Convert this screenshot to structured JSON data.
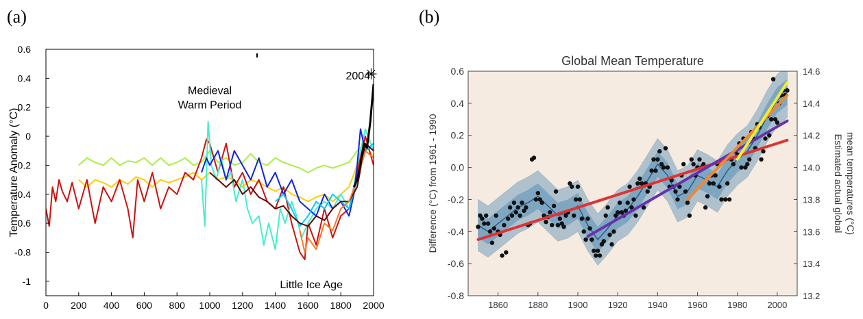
{
  "panels": {
    "a": "(a)",
    "b": "(b)"
  },
  "chart_data": [
    {
      "type": "line",
      "title": "",
      "xlabel": "",
      "ylabel": "Temperature Anomaly (°C)",
      "xlim": [
        0,
        2000
      ],
      "ylim": [
        -1.1,
        0.6
      ],
      "xticks": [
        0,
        200,
        400,
        600,
        800,
        1000,
        1200,
        1400,
        1600,
        1800,
        2000
      ],
      "yticks": [
        -1,
        -0.8,
        -0.6,
        -0.4,
        -0.2,
        0,
        0.2,
        0.4,
        0.6
      ],
      "ytick_labels": [
        "-1",
        "-0.8",
        "-0.6",
        "-0.4",
        "-0.2",
        "0",
        "0.2",
        "0.4",
        "0.6"
      ],
      "grid": false,
      "annotations": [
        {
          "text": "Medieval",
          "x": 1000,
          "y": 0.32
        },
        {
          "text": "Warm Period",
          "x": 1000,
          "y": 0.22
        },
        {
          "text": "Little Ice Age",
          "x": 1620,
          "y": -1.02
        },
        {
          "text": "2004",
          "x": 1905,
          "y": 0.42
        },
        {
          "text": "✳",
          "x": 1985,
          "y": 0.42
        }
      ],
      "series": [
        {
          "color": "#aaee44",
          "x": [
            200,
            250,
            300,
            350,
            400,
            450,
            500,
            550,
            600,
            650,
            700,
            750,
            800,
            850,
            900,
            950,
            1000,
            1050,
            1100,
            1150,
            1200,
            1250,
            1300,
            1350,
            1400,
            1450,
            1500,
            1550,
            1600,
            1650,
            1700,
            1750,
            1800,
            1850,
            1900,
            1950,
            2000
          ],
          "y": [
            -0.2,
            -0.15,
            -0.18,
            -0.2,
            -0.15,
            -0.2,
            -0.17,
            -0.18,
            -0.15,
            -0.2,
            -0.15,
            -0.2,
            -0.18,
            -0.15,
            -0.2,
            -0.18,
            -0.1,
            -0.18,
            -0.15,
            -0.2,
            -0.18,
            -0.12,
            -0.18,
            -0.2,
            -0.15,
            -0.18,
            -0.2,
            -0.22,
            -0.25,
            -0.22,
            -0.2,
            -0.22,
            -0.2,
            -0.18,
            -0.1,
            -0.05,
            -0.15
          ]
        },
        {
          "color": "#ffcc00",
          "x": [
            200,
            250,
            300,
            350,
            400,
            450,
            500,
            550,
            600,
            650,
            700,
            750,
            800,
            850,
            900,
            950,
            1000,
            1050,
            1100,
            1150,
            1200,
            1250,
            1300,
            1350,
            1400,
            1450,
            1500,
            1550,
            1600,
            1650,
            1700,
            1750,
            1800,
            1850,
            1900,
            1950,
            2000
          ],
          "y": [
            -0.3,
            -0.35,
            -0.3,
            -0.32,
            -0.35,
            -0.3,
            -0.33,
            -0.28,
            -0.3,
            -0.35,
            -0.3,
            -0.32,
            -0.3,
            -0.28,
            -0.25,
            -0.3,
            -0.25,
            -0.3,
            -0.28,
            -0.3,
            -0.35,
            -0.3,
            -0.32,
            -0.35,
            -0.38,
            -0.35,
            -0.4,
            -0.42,
            -0.45,
            -0.42,
            -0.4,
            -0.45,
            -0.4,
            -0.35,
            -0.2,
            -0.05,
            -0.15
          ]
        },
        {
          "color": "#cc1111",
          "x": [
            0,
            20,
            40,
            60,
            80,
            100,
            130,
            160,
            200,
            250,
            300,
            350,
            400,
            450,
            500,
            530,
            560,
            600,
            650,
            700,
            750,
            800,
            850,
            900,
            950,
            980,
            1000,
            1050,
            1100,
            1150,
            1200,
            1250,
            1300,
            1350,
            1400,
            1450,
            1500,
            1550,
            1580,
            1600,
            1650,
            1700,
            1750,
            1800,
            1850,
            1880,
            1900,
            1950,
            2000
          ],
          "y": [
            -0.5,
            -0.62,
            -0.35,
            -0.45,
            -0.3,
            -0.38,
            -0.45,
            -0.32,
            -0.5,
            -0.3,
            -0.6,
            -0.35,
            -0.45,
            -0.3,
            -0.5,
            -0.7,
            -0.3,
            -0.45,
            -0.25,
            -0.5,
            -0.35,
            -0.4,
            -0.25,
            -0.3,
            -0.15,
            -0.02,
            -0.05,
            -0.25,
            -0.05,
            -0.35,
            -0.25,
            -0.4,
            -0.3,
            -0.45,
            -0.5,
            -0.35,
            -0.6,
            -0.8,
            -0.85,
            -0.6,
            -0.75,
            -0.5,
            -0.7,
            -0.55,
            -0.5,
            -0.35,
            -0.25,
            0.0,
            -0.2
          ]
        },
        {
          "color": "#44eecc",
          "x": [
            950,
            970,
            990,
            1010,
            1040,
            1070,
            1100,
            1130,
            1160,
            1200,
            1230,
            1260,
            1300,
            1330,
            1360,
            1400,
            1430,
            1460,
            1500,
            1530,
            1560,
            1600,
            1650,
            1700,
            1750,
            1800,
            1850,
            1880,
            1900,
            1950,
            2000
          ],
          "y": [
            -0.3,
            -0.62,
            0.1,
            -0.2,
            -0.3,
            -0.15,
            -0.3,
            -0.25,
            -0.45,
            -0.3,
            -0.5,
            -0.6,
            -0.55,
            -0.75,
            -0.6,
            -0.78,
            -0.5,
            -0.6,
            -0.45,
            -0.55,
            -0.7,
            -0.6,
            -0.5,
            -0.45,
            -0.5,
            -0.4,
            -0.5,
            -0.35,
            -0.2,
            0.05,
            -0.1
          ]
        },
        {
          "color": "#1122dd",
          "x": [
            950,
            980,
            1000,
            1050,
            1100,
            1150,
            1200,
            1250,
            1300,
            1350,
            1400,
            1450,
            1500,
            1550,
            1600,
            1650,
            1700,
            1750,
            1800,
            1850,
            1880,
            1900,
            1920,
            1950,
            2000
          ],
          "y": [
            -0.25,
            -0.15,
            -0.2,
            -0.1,
            -0.3,
            -0.1,
            -0.2,
            -0.3,
            -0.15,
            -0.35,
            -0.25,
            -0.4,
            -0.3,
            -0.45,
            -0.5,
            -0.55,
            -0.4,
            -0.5,
            -0.45,
            -0.55,
            -0.4,
            -0.2,
            0.05,
            -0.1,
            -0.05
          ]
        },
        {
          "color": "#00ccff",
          "x": [
            1400,
            1450,
            1500,
            1550,
            1600,
            1650,
            1700,
            1750,
            1800,
            1850,
            1900,
            1950,
            2000
          ],
          "y": [
            -0.45,
            -0.4,
            -0.5,
            -0.62,
            -0.55,
            -0.45,
            -0.5,
            -0.4,
            -0.45,
            -0.5,
            -0.3,
            -0.1,
            -0.05
          ]
        },
        {
          "color": "#660000",
          "x": [
            1000,
            1050,
            1100,
            1150,
            1200,
            1250,
            1300,
            1350,
            1400,
            1450,
            1500,
            1550,
            1600,
            1650,
            1700,
            1750,
            1800,
            1850,
            1900,
            1950,
            2000
          ],
          "y": [
            -0.25,
            -0.3,
            -0.35,
            -0.3,
            -0.4,
            -0.35,
            -0.42,
            -0.45,
            -0.5,
            -0.48,
            -0.55,
            -0.6,
            -0.62,
            -0.55,
            -0.58,
            -0.5,
            -0.45,
            -0.45,
            -0.35,
            -0.05,
            -0.1
          ]
        },
        {
          "color": "#ff7722",
          "x": [
            1550,
            1580,
            1600,
            1650,
            1700,
            1750,
            1800,
            1850,
            1900,
            1950,
            2000
          ],
          "y": [
            -0.65,
            -0.8,
            -0.7,
            -0.78,
            -0.6,
            -0.65,
            -0.5,
            -0.45,
            -0.3,
            -0.1,
            -0.15
          ]
        },
        {
          "color": "#000000",
          "x": [
            1880,
            1900,
            1920,
            1940,
            1960,
            1980,
            2000
          ],
          "y": [
            -0.35,
            -0.3,
            -0.2,
            -0.05,
            -0.08,
            0.1,
            0.36
          ]
        }
      ]
    },
    {
      "type": "scatter",
      "title": "Global Mean Temperature",
      "xlabel": "",
      "ylabel": "Difference (°C) from 1961 - 1990",
      "y2label_lines": [
        "Estimated actual global",
        "mean temperatures (°C)"
      ],
      "xlim": [
        1845,
        2010
      ],
      "ylim": [
        -0.8,
        0.6
      ],
      "y2lim": [
        13.2,
        14.6
      ],
      "xticks": [
        1860,
        1880,
        1900,
        1920,
        1940,
        1960,
        1980,
        2000
      ],
      "yticks": [
        -0.8,
        -0.6,
        -0.4,
        -0.2,
        0.0,
        0.2,
        0.4,
        0.6
      ],
      "ytick_labels": [
        "-0.8",
        "-0.6",
        "-0.4",
        "-0.2",
        "0.0",
        "0.2",
        "0.4",
        "0.6"
      ],
      "y2ticks": [
        13.2,
        13.4,
        13.6,
        13.8,
        14.0,
        14.2,
        14.4,
        14.6
      ],
      "y2tick_labels": [
        "13.2",
        "13.4",
        "13.6",
        "13.8",
        "14.0",
        "14.2",
        "14.4",
        "14.6"
      ],
      "grid": false,
      "background": "#f5ebe0",
      "band_color": "#5a8fb8",
      "smooth": {
        "x": [
          1850,
          1855,
          1860,
          1865,
          1870,
          1875,
          1880,
          1885,
          1890,
          1895,
          1900,
          1905,
          1910,
          1915,
          1920,
          1925,
          1930,
          1935,
          1940,
          1945,
          1950,
          1955,
          1960,
          1965,
          1970,
          1975,
          1980,
          1985,
          1990,
          1995,
          2000,
          2005
        ],
        "y": [
          -0.36,
          -0.4,
          -0.35,
          -0.3,
          -0.25,
          -0.22,
          -0.18,
          -0.24,
          -0.3,
          -0.28,
          -0.24,
          -0.36,
          -0.45,
          -0.38,
          -0.3,
          -0.26,
          -0.18,
          -0.08,
          0.02,
          -0.05,
          -0.18,
          -0.15,
          -0.05,
          -0.08,
          -0.12,
          -0.02,
          0.05,
          0.1,
          0.2,
          0.32,
          0.42,
          0.47
        ],
        "band_outer": 0.16,
        "band_inner": 0.08
      },
      "points": {
        "x": [
          1850,
          1851,
          1852,
          1853,
          1854,
          1855,
          1856,
          1857,
          1858,
          1859,
          1860,
          1861,
          1862,
          1863,
          1864,
          1865,
          1866,
          1867,
          1868,
          1869,
          1870,
          1871,
          1872,
          1873,
          1874,
          1875,
          1876,
          1877,
          1878,
          1879,
          1880,
          1881,
          1882,
          1883,
          1884,
          1885,
          1886,
          1887,
          1888,
          1889,
          1890,
          1891,
          1892,
          1893,
          1894,
          1895,
          1896,
          1897,
          1898,
          1899,
          1900,
          1901,
          1902,
          1903,
          1904,
          1905,
          1906,
          1907,
          1908,
          1909,
          1910,
          1911,
          1912,
          1913,
          1914,
          1915,
          1916,
          1917,
          1918,
          1919,
          1920,
          1921,
          1922,
          1923,
          1924,
          1925,
          1926,
          1927,
          1928,
          1929,
          1930,
          1931,
          1932,
          1933,
          1934,
          1935,
          1936,
          1937,
          1938,
          1939,
          1940,
          1941,
          1942,
          1943,
          1944,
          1945,
          1946,
          1947,
          1948,
          1949,
          1950,
          1951,
          1952,
          1953,
          1954,
          1955,
          1956,
          1957,
          1958,
          1959,
          1960,
          1961,
          1962,
          1963,
          1964,
          1965,
          1966,
          1967,
          1968,
          1969,
          1970,
          1971,
          1972,
          1973,
          1974,
          1975,
          1976,
          1977,
          1978,
          1979,
          1980,
          1981,
          1982,
          1983,
          1984,
          1985,
          1986,
          1987,
          1988,
          1989,
          1990,
          1991,
          1992,
          1993,
          1994,
          1995,
          1996,
          1997,
          1998,
          1999,
          2000,
          2001,
          2002,
          2003,
          2004,
          2005
        ],
        "y": [
          -0.37,
          -0.3,
          -0.32,
          -0.35,
          -0.3,
          -0.35,
          -0.4,
          -0.47,
          -0.38,
          -0.3,
          -0.4,
          -0.42,
          -0.55,
          -0.36,
          -0.53,
          -0.32,
          -0.25,
          -0.3,
          -0.22,
          -0.28,
          -0.25,
          -0.3,
          -0.22,
          -0.27,
          -0.25,
          -0.36,
          -0.35,
          0.05,
          0.06,
          -0.2,
          -0.16,
          -0.2,
          -0.22,
          -0.3,
          -0.34,
          -0.31,
          -0.28,
          -0.36,
          -0.24,
          -0.15,
          -0.36,
          -0.32,
          -0.35,
          -0.37,
          -0.3,
          -0.28,
          -0.1,
          -0.12,
          -0.3,
          -0.2,
          -0.12,
          -0.2,
          -0.32,
          -0.4,
          -0.45,
          -0.32,
          -0.38,
          -0.45,
          -0.52,
          -0.55,
          -0.52,
          -0.55,
          -0.48,
          -0.46,
          -0.3,
          -0.25,
          -0.42,
          -0.48,
          -0.4,
          -0.3,
          -0.28,
          -0.22,
          -0.28,
          -0.3,
          -0.27,
          -0.22,
          -0.12,
          -0.25,
          -0.2,
          -0.3,
          -0.1,
          -0.07,
          -0.1,
          -0.25,
          -0.1,
          -0.15,
          -0.12,
          -0.02,
          0.05,
          -0.02,
          0.05,
          0.1,
          0.02,
          0.0,
          0.12,
          0.0,
          -0.12,
          -0.08,
          -0.12,
          -0.15,
          -0.2,
          -0.12,
          -0.05,
          0.02,
          -0.15,
          -0.22,
          -0.3,
          0.05,
          0.02,
          -0.05,
          0.0,
          0.05,
          0.0,
          0.02,
          -0.25,
          -0.18,
          -0.1,
          -0.05,
          -0.1,
          -0.05,
          0.02,
          -0.12,
          -0.2,
          0.05,
          -0.2,
          -0.1,
          -0.2,
          0.05,
          0.02,
          0.1,
          0.08,
          0.15,
          0.0,
          0.18,
          0.0,
          0.02,
          0.05,
          0.22,
          0.18,
          0.12,
          0.27,
          0.25,
          0.05,
          0.1,
          0.18,
          0.32,
          0.2,
          0.3,
          0.55,
          0.3,
          0.28,
          0.4,
          0.45,
          0.48,
          0.45,
          0.48
        ]
      },
      "trends": [
        {
          "color": "#dd3333",
          "x": [
            1850,
            2005
          ],
          "y": [
            -0.45,
            0.17
          ]
        },
        {
          "color": "#6633aa",
          "x": [
            1905,
            2005
          ],
          "y": [
            -0.43,
            0.29
          ]
        },
        {
          "color": "#ee8833",
          "x": [
            1955,
            2005
          ],
          "y": [
            -0.2,
            0.45
          ]
        },
        {
          "color": "#eeee33",
          "x": [
            1980,
            2005
          ],
          "y": [
            0.05,
            0.53
          ]
        }
      ]
    }
  ]
}
